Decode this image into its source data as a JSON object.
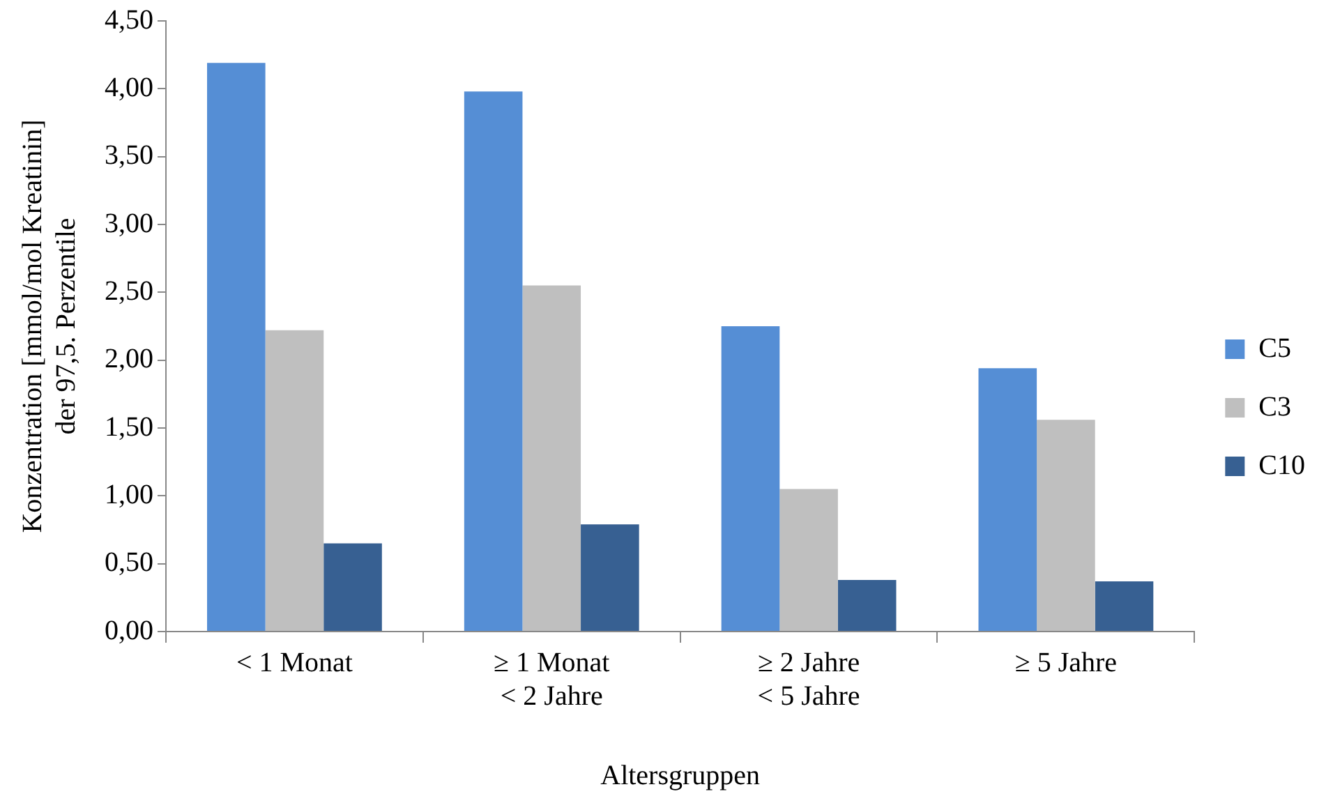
{
  "chart_data": {
    "type": "bar",
    "xlabel": "Altersgruppen",
    "ylabel": "Konzentration [mmol/mol Kreatinin]\nder 97,5. Perzentile",
    "categories": [
      "< 1 Monat",
      "≥ 1 Monat\n< 2 Jahre",
      "≥ 2 Jahre\n< 5 Jahre",
      "≥ 5 Jahre"
    ],
    "series": [
      {
        "name": "C5",
        "color": "#558ed5",
        "values": [
          4.19,
          3.98,
          2.25,
          1.94
        ]
      },
      {
        "name": "C3",
        "color": "#bfbfbf",
        "values": [
          2.22,
          2.55,
          1.05,
          1.56
        ]
      },
      {
        "name": "C10",
        "color": "#376092",
        "values": [
          0.65,
          0.79,
          0.38,
          0.37
        ]
      }
    ],
    "ylim": [
      0,
      4.5
    ],
    "yticks": [
      {
        "value": 0,
        "label": "0,00"
      },
      {
        "value": 0.5,
        "label": "0,50"
      },
      {
        "value": 1,
        "label": "1,00"
      },
      {
        "value": 1.5,
        "label": "1,50"
      },
      {
        "value": 2,
        "label": "2,00"
      },
      {
        "value": 2.5,
        "label": "2,50"
      },
      {
        "value": 3,
        "label": "3,00"
      },
      {
        "value": 3.5,
        "label": "3,50"
      },
      {
        "value": 4,
        "label": "4,00"
      },
      {
        "value": 4.5,
        "label": "4,50"
      }
    ],
    "grid": false,
    "legend": "right"
  }
}
